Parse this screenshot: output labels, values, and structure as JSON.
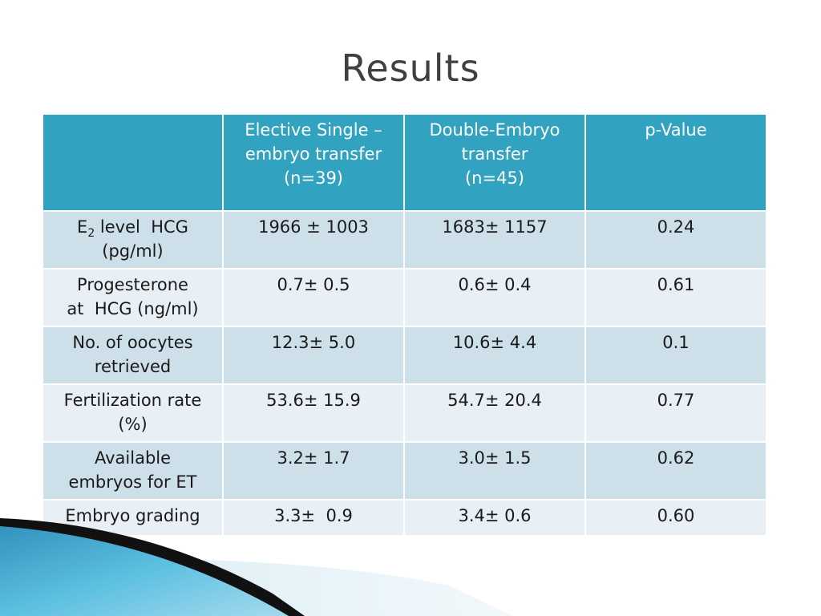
{
  "slide": {
    "title": "Results"
  },
  "table": {
    "header": {
      "col0": "",
      "col1_line1": "Elective Single –",
      "col1_line2": "embryo transfer",
      "col1_line3": "(n=39)",
      "col2_line1": "Double-Embryo",
      "col2_line2": "transfer",
      "col2_line3": "(n=45)",
      "col3": "p-Value"
    },
    "rows": [
      {
        "label_line1_pre": "E",
        "label_line1_sub": "2",
        "label_line1_post": " level  HCG",
        "label_line2": "(pg/ml)",
        "elective": "1966 ± 1003",
        "double": "1683± 1157",
        "p": "0.24"
      },
      {
        "label_line1": "Progesterone",
        "label_line2": "at  HCG (ng/ml)",
        "elective": "0.7± 0.5",
        "double": "0.6± 0.4",
        "p": "0.61"
      },
      {
        "label_line1": "No. of oocytes",
        "label_line2": "retrieved",
        "elective": "12.3± 5.0",
        "double": "10.6± 4.4",
        "p": "0.1"
      },
      {
        "label_line1": "Fertilization rate",
        "label_line2": "(%)",
        "elective": "53.6± 15.9",
        "double": "54.7± 20.4",
        "p": "0.77"
      },
      {
        "label_line1": "Available",
        "label_line2": "embryos for ET",
        "elective": "3.2± 1.7",
        "double": "3.0± 1.5",
        "p": "0.62"
      },
      {
        "label_line1": "Embryo grading",
        "elective": "3.3±  0.9",
        "double": "3.4± 0.6",
        "p": "0.60"
      }
    ]
  },
  "colors": {
    "header_bg": "#31a2c0",
    "row_odd_bg": "#cde0ea",
    "row_even_bg": "#e8eff5",
    "title_color": "#404040",
    "accent_blue": "#3aa6cc"
  }
}
